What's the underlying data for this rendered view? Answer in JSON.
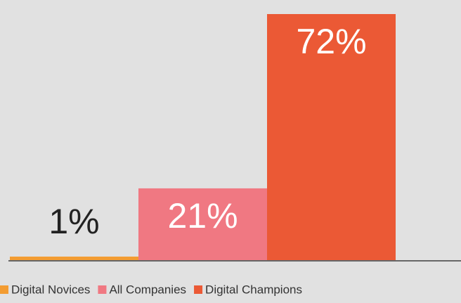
{
  "chart_data": {
    "type": "bar",
    "categories": [
      "Digital Novices",
      "All Companies",
      "Digital Champions"
    ],
    "values": [
      1,
      21,
      72
    ],
    "value_labels": [
      "1%",
      "21%",
      "72%"
    ],
    "colors": [
      "#f39c32",
      "#f07882",
      "#eb5935"
    ]
  }
}
